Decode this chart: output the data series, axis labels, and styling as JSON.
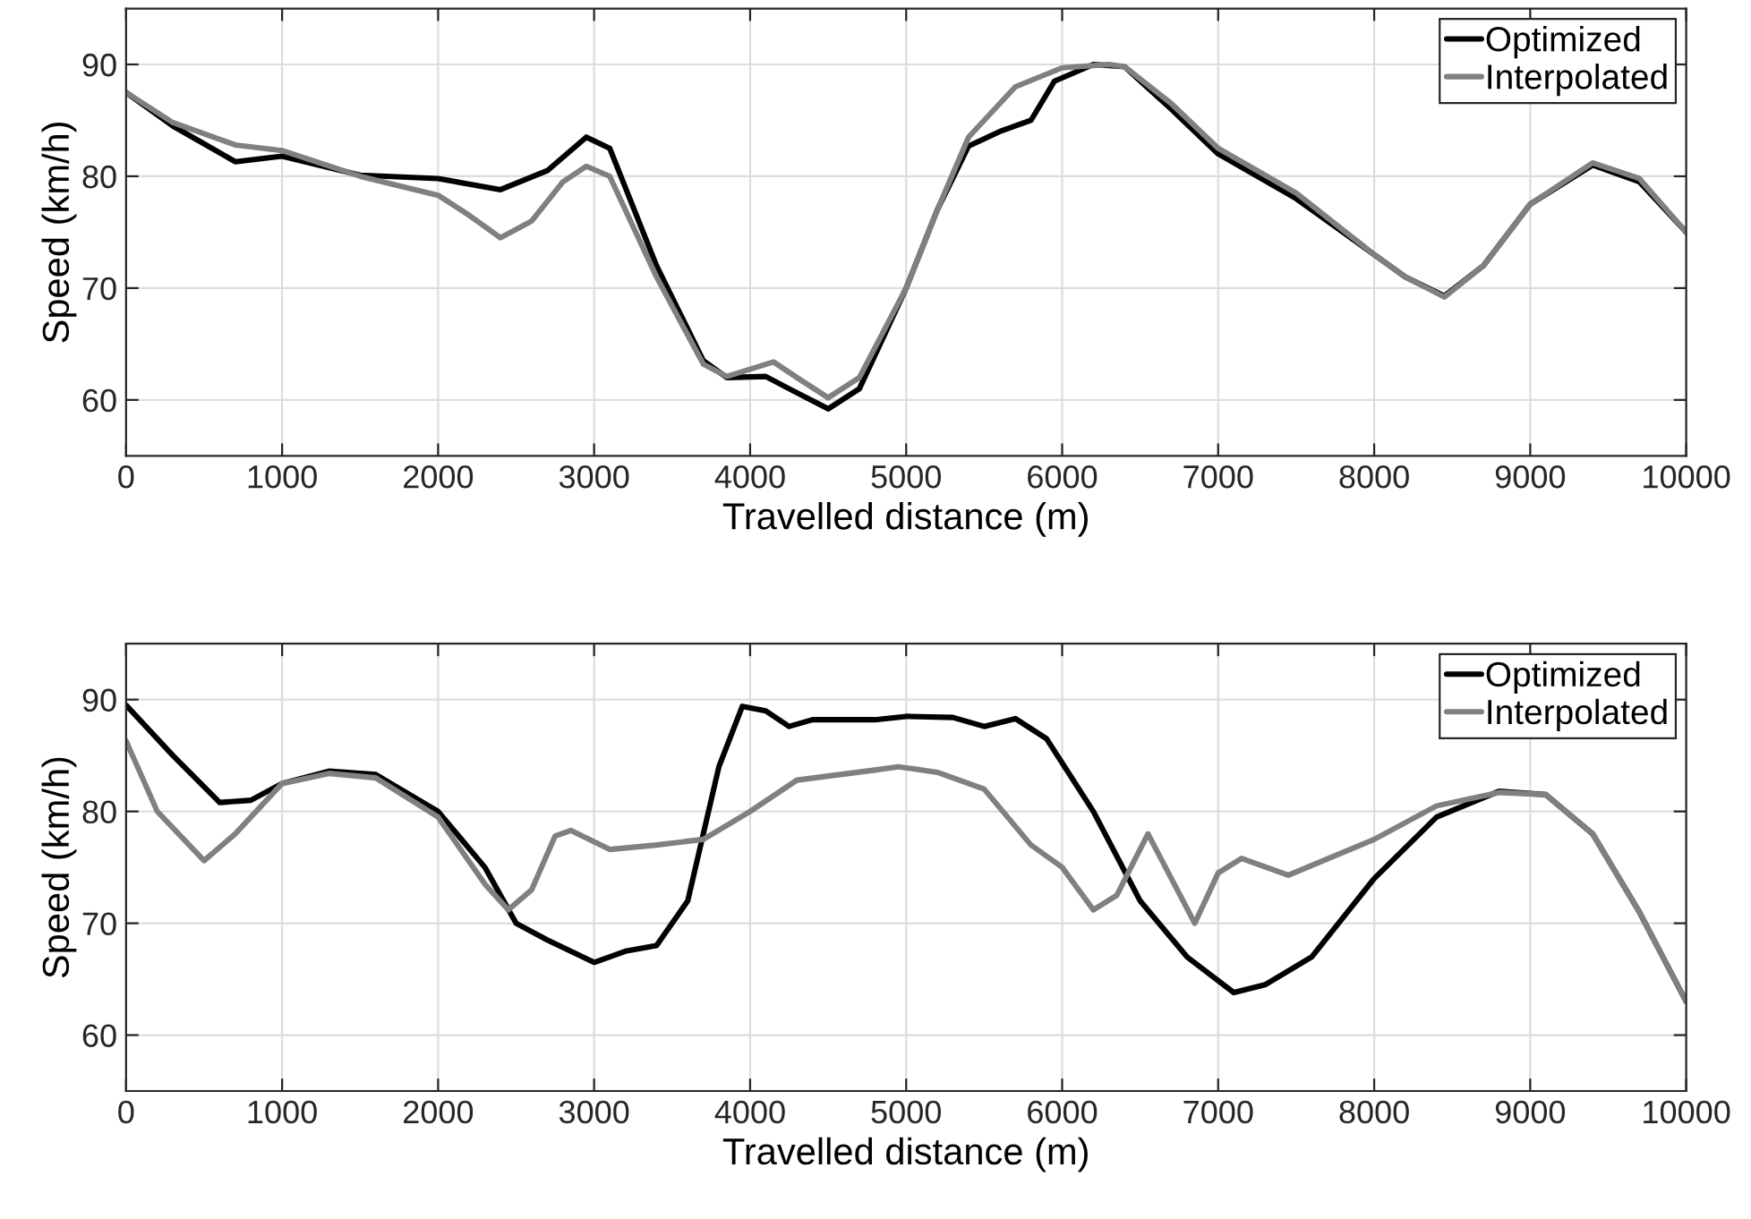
{
  "chart_data": [
    {
      "type": "line",
      "xlabel": "Travelled distance (m)",
      "ylabel": "Speed (km/h)",
      "xlim": [
        0,
        10000
      ],
      "ylim": [
        55,
        95
      ],
      "xticks": [
        0,
        1000,
        2000,
        3000,
        4000,
        5000,
        6000,
        7000,
        8000,
        9000,
        10000
      ],
      "yticks": [
        60,
        70,
        80,
        90
      ],
      "grid": true,
      "legend": "top right",
      "series": [
        {
          "name": "Optimized",
          "color": "#000000",
          "x": [
            0,
            300,
            700,
            1000,
            1500,
            2000,
            2400,
            2700,
            2950,
            3100,
            3400,
            3700,
            3850,
            4100,
            4250,
            4500,
            4700,
            5000,
            5200,
            5400,
            5600,
            5800,
            5950,
            6200,
            6400,
            6700,
            7000,
            7500,
            8000,
            8200,
            8450,
            8700,
            9000,
            9400,
            9700,
            10000
          ],
          "values": [
            87.5,
            84.5,
            81.3,
            81.8,
            80.1,
            79.8,
            78.8,
            80.5,
            83.5,
            82.5,
            72,
            63.5,
            62,
            62.1,
            61,
            59.2,
            61,
            70,
            77,
            82.7,
            84,
            85,
            88.5,
            90,
            89.8,
            86,
            82,
            78,
            73,
            71,
            69.3,
            72,
            77.5,
            81,
            79.5,
            75
          ]
        },
        {
          "name": "Interpolated",
          "color": "#808080",
          "x": [
            0,
            300,
            700,
            1000,
            1500,
            2000,
            2200,
            2400,
            2600,
            2800,
            2950,
            3100,
            3400,
            3700,
            3850,
            4150,
            4300,
            4500,
            4700,
            5000,
            5200,
            5400,
            5700,
            6000,
            6300,
            6400,
            6700,
            7000,
            7500,
            8000,
            8200,
            8450,
            8700,
            9000,
            9400,
            9700,
            10000
          ],
          "values": [
            87.5,
            84.8,
            82.8,
            82.3,
            80,
            78.3,
            76.5,
            74.5,
            76,
            79.5,
            80.9,
            80,
            71,
            63.2,
            62.1,
            63.4,
            62,
            60.2,
            62,
            70,
            77,
            83.5,
            88,
            89.7,
            90,
            89.8,
            86.5,
            82.5,
            78.5,
            73,
            71,
            69.2,
            72,
            77.5,
            81.2,
            79.8,
            75
          ]
        }
      ]
    },
    {
      "type": "line",
      "xlabel": "Travelled distance (m)",
      "ylabel": "Speed (km/h)",
      "xlim": [
        0,
        10000
      ],
      "ylim": [
        55,
        95
      ],
      "xticks": [
        0,
        1000,
        2000,
        3000,
        4000,
        5000,
        6000,
        7000,
        8000,
        9000,
        10000
      ],
      "yticks": [
        60,
        70,
        80,
        90
      ],
      "grid": true,
      "legend": "top right",
      "series": [
        {
          "name": "Optimized",
          "color": "#000000",
          "x": [
            0,
            300,
            600,
            800,
            1000,
            1300,
            1600,
            2000,
            2300,
            2500,
            2700,
            3000,
            3200,
            3400,
            3600,
            3800,
            3950,
            4100,
            4250,
            4400,
            4800,
            5000,
            5300,
            5500,
            5700,
            5900,
            6200,
            6500,
            6800,
            7100,
            7300,
            7600,
            8000,
            8400,
            8800,
            9100,
            9400,
            9700,
            10000
          ],
          "values": [
            89.5,
            85,
            80.8,
            81,
            82.5,
            83.6,
            83.3,
            80,
            75,
            70,
            68.5,
            66.5,
            67.5,
            68,
            72,
            84,
            89.4,
            89,
            87.6,
            88.2,
            88.2,
            88.5,
            88.4,
            87.6,
            88.3,
            86.5,
            80,
            72,
            67,
            63.8,
            64.5,
            67,
            74,
            79.5,
            81.8,
            81.5,
            78,
            71,
            63
          ]
        },
        {
          "name": "Interpolated",
          "color": "#808080",
          "x": [
            0,
            200,
            500,
            700,
            1000,
            1300,
            1600,
            2000,
            2300,
            2450,
            2600,
            2750,
            2850,
            3100,
            3400,
            3700,
            4000,
            4300,
            4800,
            4950,
            5200,
            5500,
            5800,
            6000,
            6200,
            6350,
            6550,
            6700,
            6850,
            7000,
            7150,
            7450,
            8000,
            8400,
            8800,
            9100,
            9400,
            9700,
            10000
          ],
          "values": [
            86.3,
            80,
            75.6,
            78,
            82.5,
            83.4,
            83,
            79.5,
            73.5,
            71.2,
            73,
            77.8,
            78.3,
            76.6,
            77,
            77.5,
            80,
            82.8,
            83.7,
            84,
            83.5,
            82,
            77,
            75,
            71.2,
            72.5,
            78,
            74,
            70,
            74.5,
            75.8,
            74.3,
            77.5,
            80.5,
            81.7,
            81.5,
            78,
            71,
            63
          ]
        }
      ]
    }
  ]
}
